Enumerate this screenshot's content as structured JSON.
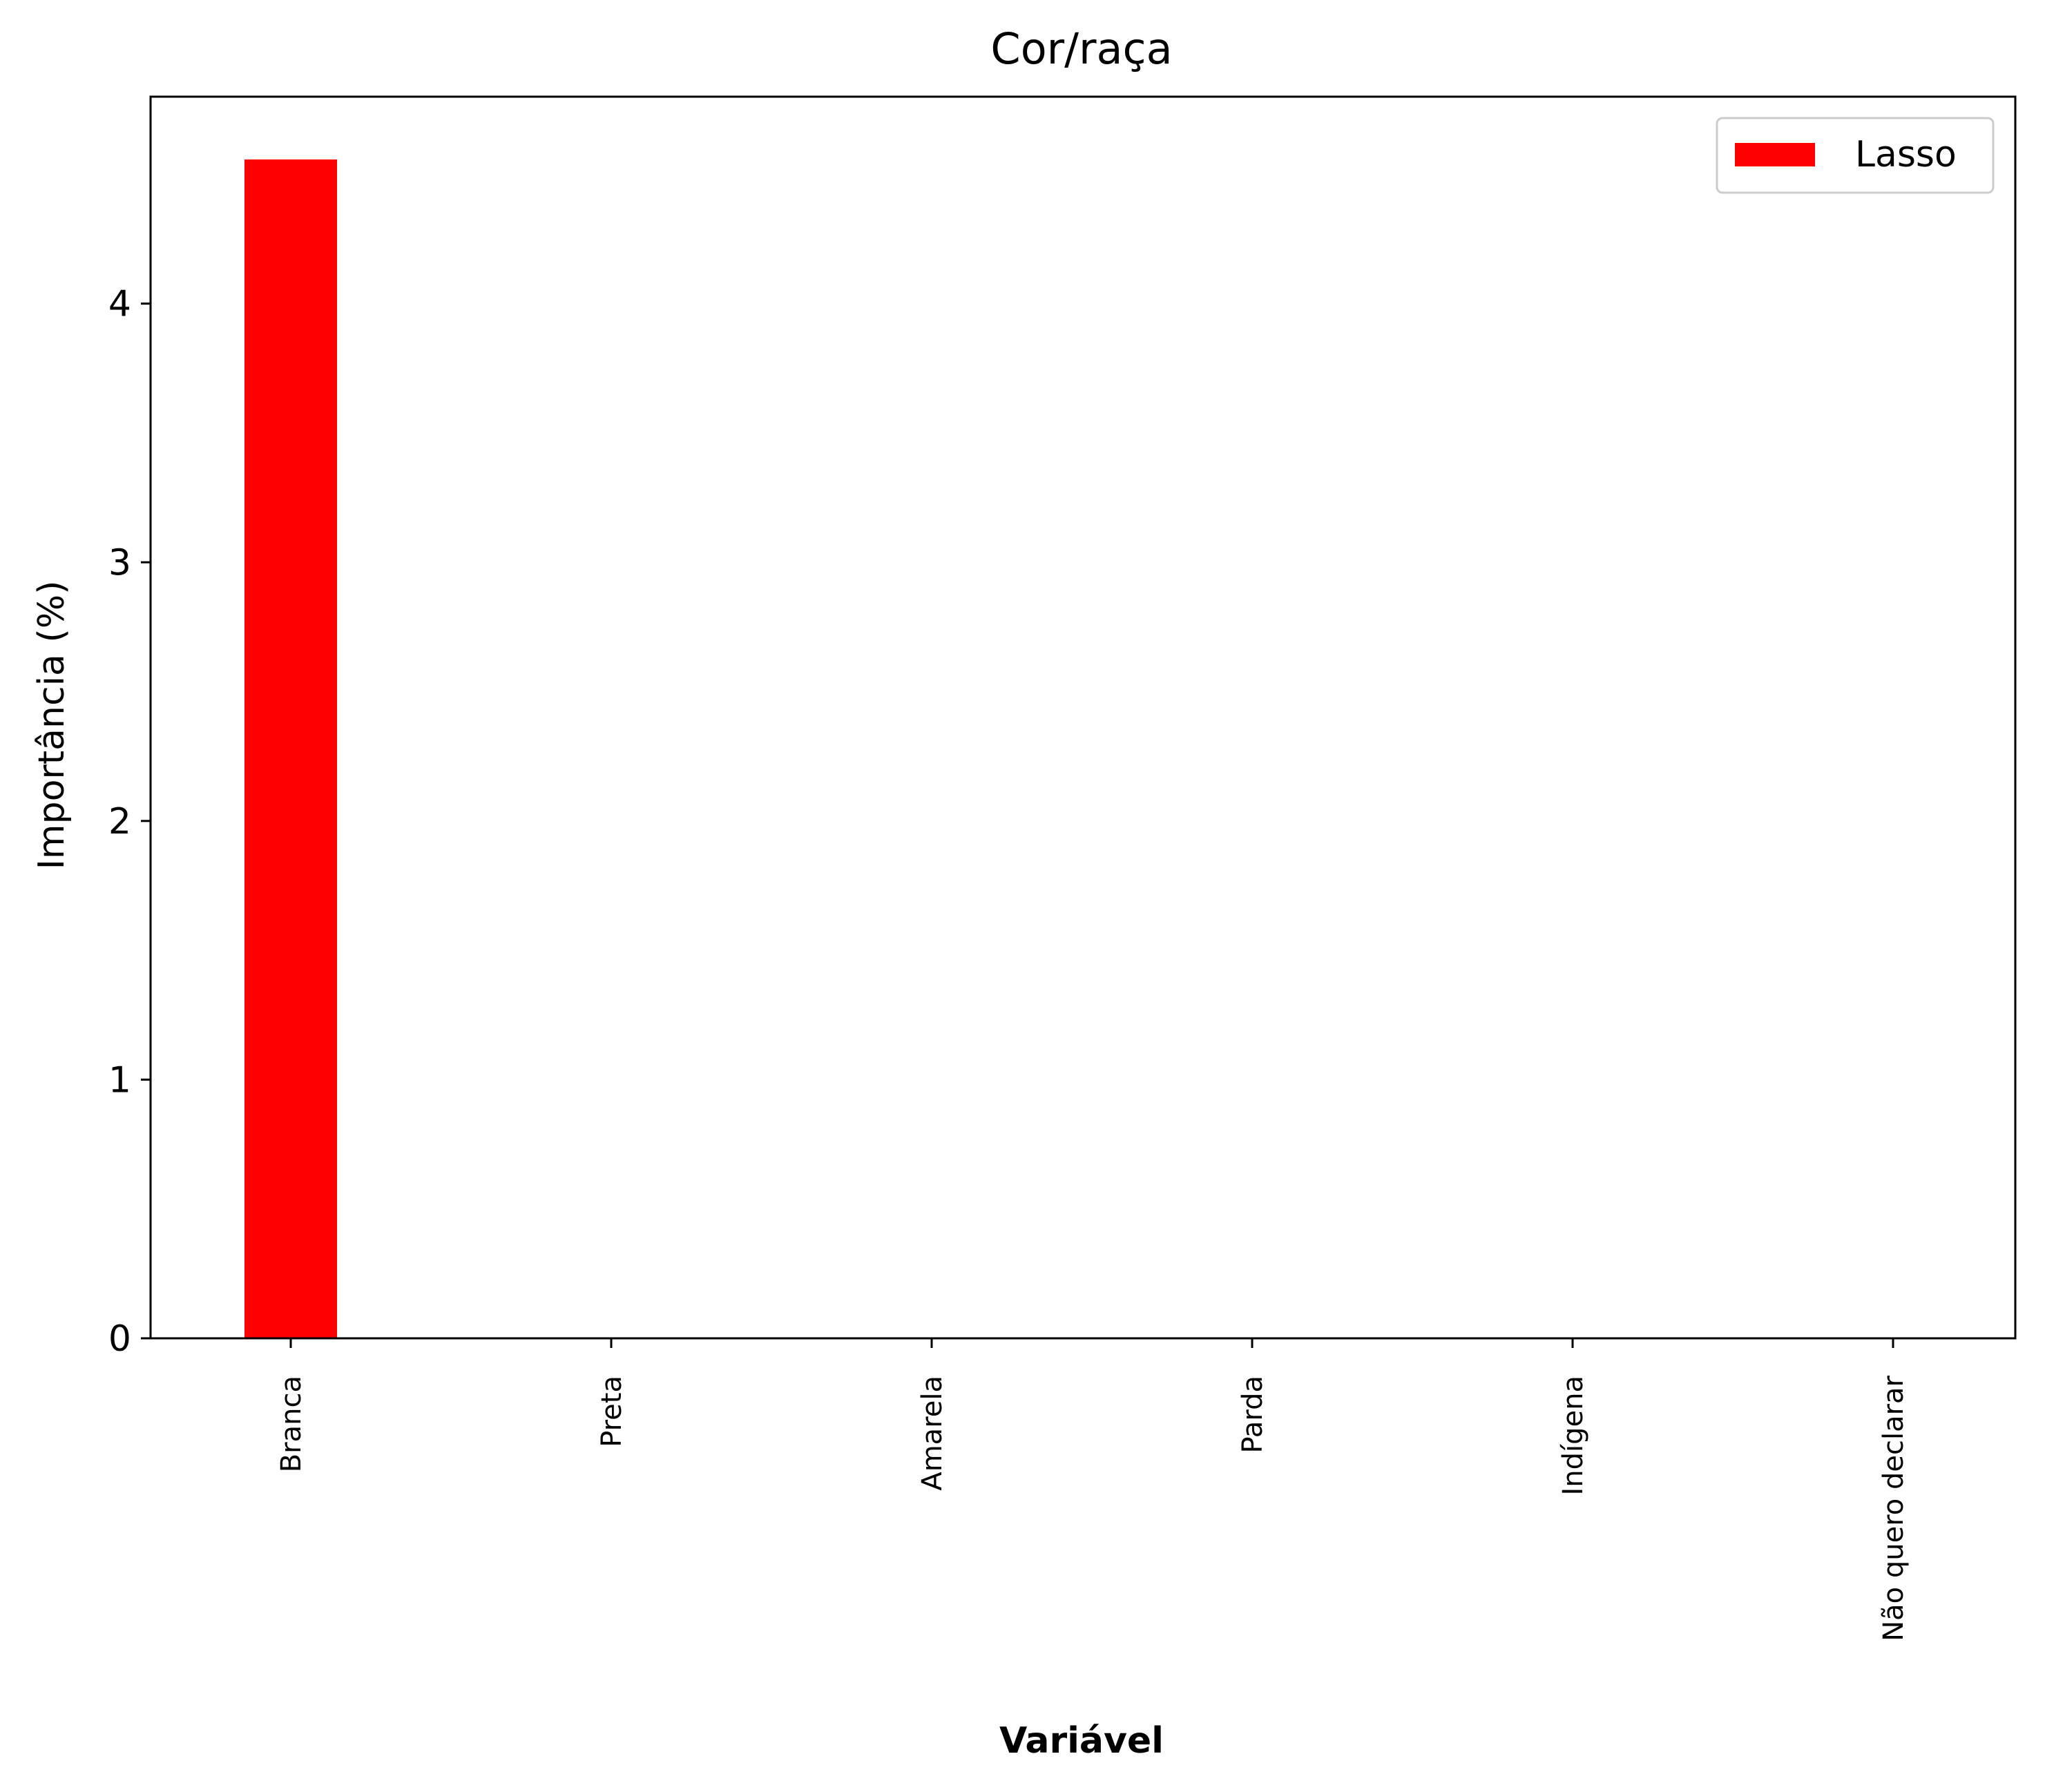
{
  "chart_data": {
    "type": "bar",
    "title": "Cor/raça",
    "xlabel": "Variável",
    "ylabel": "Importância (%)",
    "categories": [
      "Branca",
      "Preta",
      "Amarela",
      "Parda",
      "Indígena",
      "Não quero declarar"
    ],
    "series": [
      {
        "name": "Lasso",
        "values": [
          4.56,
          0,
          0,
          0,
          0,
          0
        ],
        "color": "#ff0000"
      }
    ],
    "ylim": [
      0,
      4.8
    ],
    "yticks": [
      0,
      1,
      2,
      3,
      4
    ],
    "grid": false,
    "legend": "top-right"
  }
}
